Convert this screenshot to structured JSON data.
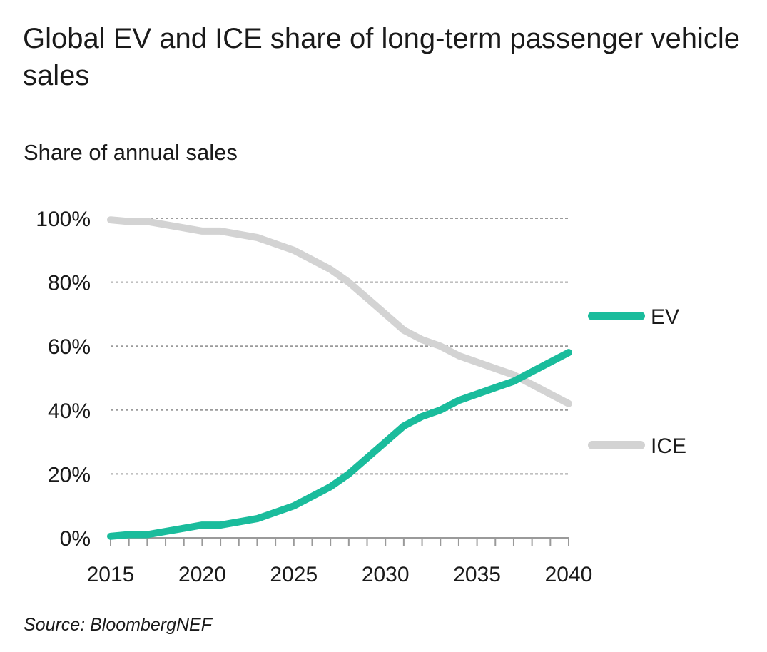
{
  "chart_data": {
    "type": "line",
    "title": "Global EV and ICE share of long-term passenger vehicle sales",
    "ylabel": "Share of annual sales",
    "xlabel": "",
    "source": "Source: BloombergNEF",
    "xlim": [
      2015,
      2040
    ],
    "ylim": [
      0,
      100
    ],
    "y_ticks": [
      {
        "value": 0,
        "label": "0%"
      },
      {
        "value": 20,
        "label": "20%"
      },
      {
        "value": 40,
        "label": "40%"
      },
      {
        "value": 60,
        "label": "60%"
      },
      {
        "value": 80,
        "label": "80%"
      },
      {
        "value": 100,
        "label": "100%"
      }
    ],
    "x_ticks": [
      {
        "value": 2015,
        "label": "2015"
      },
      {
        "value": 2020,
        "label": "2020"
      },
      {
        "value": 2025,
        "label": "2025"
      },
      {
        "value": 2030,
        "label": "2030"
      },
      {
        "value": 2035,
        "label": "2035"
      },
      {
        "value": 2040,
        "label": "2040"
      }
    ],
    "grid": "horizontal-dashed",
    "legend": "right",
    "x": [
      2015,
      2016,
      2017,
      2018,
      2019,
      2020,
      2021,
      2022,
      2023,
      2024,
      2025,
      2026,
      2027,
      2028,
      2029,
      2030,
      2031,
      2032,
      2033,
      2034,
      2035,
      2036,
      2037,
      2038,
      2039,
      2040
    ],
    "series": [
      {
        "name": "EV",
        "color": "#1abc9c",
        "values": [
          0.5,
          1,
          1,
          2,
          3,
          4,
          4,
          5,
          6,
          8,
          10,
          13,
          16,
          20,
          25,
          30,
          35,
          38,
          40,
          43,
          45,
          47,
          49,
          52,
          55,
          58
        ]
      },
      {
        "name": "ICE",
        "color": "#d3d3d3",
        "values": [
          99.5,
          99,
          99,
          98,
          97,
          96,
          96,
          95,
          94,
          92,
          90,
          87,
          84,
          80,
          75,
          70,
          65,
          62,
          60,
          57,
          55,
          53,
          51,
          48,
          45,
          42
        ]
      }
    ]
  }
}
